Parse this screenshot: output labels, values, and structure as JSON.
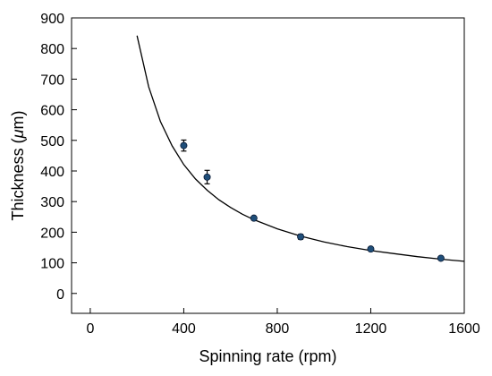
{
  "chart_data": {
    "type": "scatter",
    "title": "",
    "xlabel": "Spinning rate (rpm)",
    "ylabel_parts": [
      "Thickness (",
      "μ",
      "m)"
    ],
    "xlim": [
      -80,
      1600
    ],
    "ylim": [
      -65,
      900
    ],
    "xticks": [
      0,
      400,
      800,
      1200,
      1600
    ],
    "yticks": [
      0,
      100,
      200,
      300,
      400,
      500,
      600,
      700,
      800,
      900
    ],
    "grid": false,
    "legend": "none",
    "marker_color": "#1f4e79",
    "series": [
      {
        "x": [
          400,
          500,
          700,
          900,
          1200,
          1500
        ],
        "y": [
          483,
          380,
          246,
          185,
          145,
          115
        ],
        "yerr": [
          18,
          22,
          6,
          8,
          6,
          5
        ]
      }
    ],
    "fit_curve": {
      "x": [
        200,
        250,
        300,
        350,
        400,
        450,
        500,
        550,
        600,
        650,
        700,
        800,
        900,
        1000,
        1100,
        1200,
        1300,
        1400,
        1500,
        1600
      ],
      "y": [
        842,
        675,
        562,
        482,
        421,
        374,
        337,
        306,
        281,
        259,
        241,
        211,
        187,
        168,
        153,
        140,
        130,
        120,
        112,
        105
      ]
    }
  }
}
